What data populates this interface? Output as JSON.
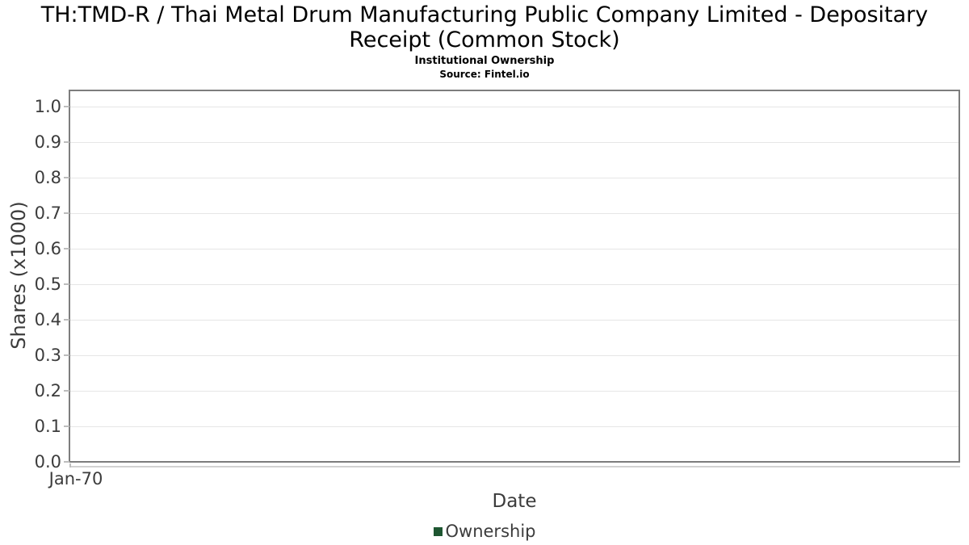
{
  "chart_data": {
    "type": "line",
    "title": "TH:TMD-R / Thai Metal Drum Manufacturing Public Company Limited - Depositary Receipt (Common Stock)",
    "title_lines": [
      "TH:TMD-R / Thai Metal Drum Manufacturing Public Company Limited - Depositary",
      "Receipt (Common Stock)"
    ],
    "subtitle": "Institutional Ownership",
    "source": "Source: Fintel.io",
    "xlabel": "Date",
    "ylabel": "Shares (x1000)",
    "xtick_labels": [
      "Jan-70"
    ],
    "ytick_labels": [
      "0.0",
      "0.1",
      "0.2",
      "0.3",
      "0.4",
      "0.5",
      "0.6",
      "0.7",
      "0.8",
      "0.9",
      "1.0"
    ],
    "ytick_values": [
      0.0,
      0.1,
      0.2,
      0.3,
      0.4,
      0.5,
      0.6,
      0.7,
      0.8,
      0.9,
      1.0
    ],
    "ylim": [
      0.0,
      1.05
    ],
    "grid": true,
    "legend_position": "bottom-center",
    "series": [
      {
        "name": "Ownership",
        "color": "#1e5631",
        "x": [],
        "values": []
      }
    ],
    "colors": {
      "title_text": "#000000",
      "axis_text": "#3c3c3c",
      "plot_border": "#7d7d7d",
      "gridline": "#e6e6e6",
      "tick_mark": "#bdbdbd",
      "legend_swatch": "#1e5631",
      "background": "#ffffff"
    }
  }
}
